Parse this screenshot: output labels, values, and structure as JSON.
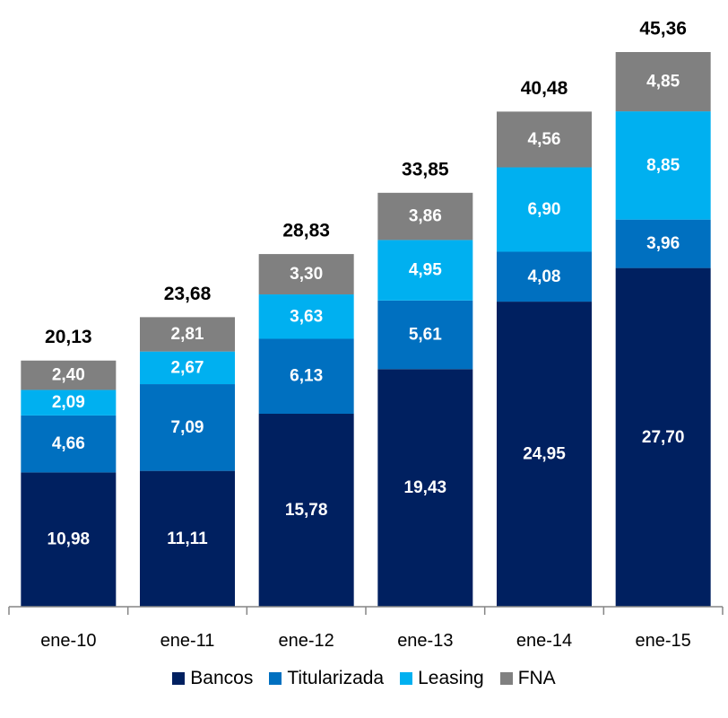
{
  "chart_data": {
    "type": "bar",
    "stacked": true,
    "categories": [
      "ene-10",
      "ene-11",
      "ene-12",
      "ene-13",
      "ene-14",
      "ene-15"
    ],
    "series": [
      {
        "name": "Bancos",
        "color": "#002060",
        "values": [
          10.98,
          11.11,
          15.78,
          19.43,
          24.95,
          27.7
        ],
        "labels": [
          "10,98",
          "11,11",
          "15,78",
          "19,43",
          "24,95",
          "27,70"
        ]
      },
      {
        "name": "Titularizada",
        "color": "#0070C0",
        "values": [
          4.66,
          7.09,
          6.13,
          5.61,
          4.08,
          3.96
        ],
        "labels": [
          "4,66",
          "7,09",
          "6,13",
          "5,61",
          "4,08",
          "3,96"
        ]
      },
      {
        "name": "Leasing",
        "color": "#00B0F0",
        "values": [
          2.09,
          2.67,
          3.63,
          4.95,
          6.9,
          8.85
        ],
        "labels": [
          "2,09",
          "2,67",
          "3,63",
          "4,95",
          "6,90",
          "8,85"
        ]
      },
      {
        "name": "FNA",
        "color": "#808080",
        "values": [
          2.4,
          2.81,
          3.3,
          3.86,
          4.56,
          4.85
        ],
        "labels": [
          "2,40",
          "2,81",
          "3,30",
          "3,86",
          "4,56",
          "4,85"
        ]
      }
    ],
    "totals": [
      20.13,
      23.68,
      28.83,
      33.85,
      40.48,
      45.36
    ],
    "total_labels": [
      "20,13",
      "23,68",
      "28,83",
      "33,85",
      "40,48",
      "45,36"
    ],
    "title": "",
    "xlabel": "",
    "ylabel": "",
    "ylim": [
      0,
      45.36
    ],
    "grid": false,
    "legend_position": "bottom"
  }
}
